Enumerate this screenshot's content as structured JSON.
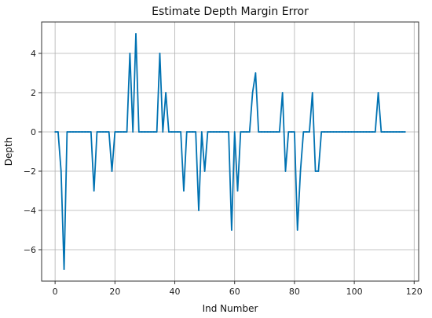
{
  "chart_data": {
    "type": "line",
    "title": "Estimate Depth Margin Error",
    "xlabel": "Ind Number",
    "ylabel": "Depth",
    "xlim": [
      -4.5,
      121.5
    ],
    "ylim": [
      -7.6,
      5.6
    ],
    "grid": true,
    "x_ticks": [
      0,
      20,
      40,
      60,
      80,
      100,
      120
    ],
    "y_ticks": [
      -6,
      -4,
      -2,
      0,
      2,
      4
    ],
    "x_tick_labels": [
      "0",
      "20",
      "40",
      "60",
      "80",
      "100",
      "120"
    ],
    "y_tick_labels": [
      "−6",
      "−4",
      "−2",
      "0",
      "2",
      "4"
    ],
    "series": [
      {
        "color": "#0072B2",
        "x": [
          0,
          1,
          2,
          3,
          4,
          5,
          6,
          7,
          8,
          9,
          10,
          11,
          12,
          13,
          14,
          15,
          16,
          17,
          18,
          19,
          20,
          21,
          22,
          23,
          24,
          25,
          26,
          27,
          28,
          29,
          30,
          31,
          32,
          33,
          34,
          35,
          36,
          37,
          38,
          39,
          40,
          41,
          42,
          43,
          44,
          45,
          46,
          47,
          48,
          49,
          50,
          51,
          52,
          53,
          54,
          55,
          56,
          57,
          58,
          59,
          60,
          61,
          62,
          63,
          64,
          65,
          66,
          67,
          68,
          69,
          70,
          71,
          72,
          73,
          74,
          75,
          76,
          77,
          78,
          79,
          80,
          81,
          82,
          83,
          84,
          85,
          86,
          87,
          88,
          89,
          90,
          91,
          92,
          93,
          94,
          95,
          96,
          97,
          98,
          99,
          100,
          101,
          102,
          103,
          104,
          105,
          106,
          107,
          108,
          109,
          110,
          111,
          112,
          113,
          114,
          115,
          116,
          117
        ],
        "y": [
          0,
          0,
          -2,
          -7,
          0,
          0,
          0,
          0,
          0,
          0,
          0,
          0,
          0,
          -3,
          0,
          0,
          0,
          0,
          0,
          -2,
          0,
          0,
          0,
          0,
          0,
          4,
          0,
          5,
          0,
          0,
          0,
          0,
          0,
          0,
          0,
          4,
          0,
          2,
          0,
          0,
          0,
          0,
          0,
          -3,
          0,
          0,
          0,
          0,
          -4,
          0,
          -2,
          0,
          0,
          0,
          0,
          0,
          0,
          0,
          0,
          -5,
          0,
          -3,
          0,
          0,
          0,
          0,
          2,
          3,
          0,
          0,
          0,
          0,
          0,
          0,
          0,
          0,
          2,
          -2,
          0,
          0,
          0,
          -5,
          -2,
          0,
          0,
          0,
          2,
          -2,
          -2,
          0,
          0,
          0,
          0,
          0,
          0,
          0,
          0,
          0,
          0,
          0,
          0,
          0,
          0,
          0,
          0,
          0,
          0,
          0,
          2,
          0,
          0,
          0,
          0,
          0,
          0,
          0,
          0,
          0
        ]
      }
    ]
  }
}
